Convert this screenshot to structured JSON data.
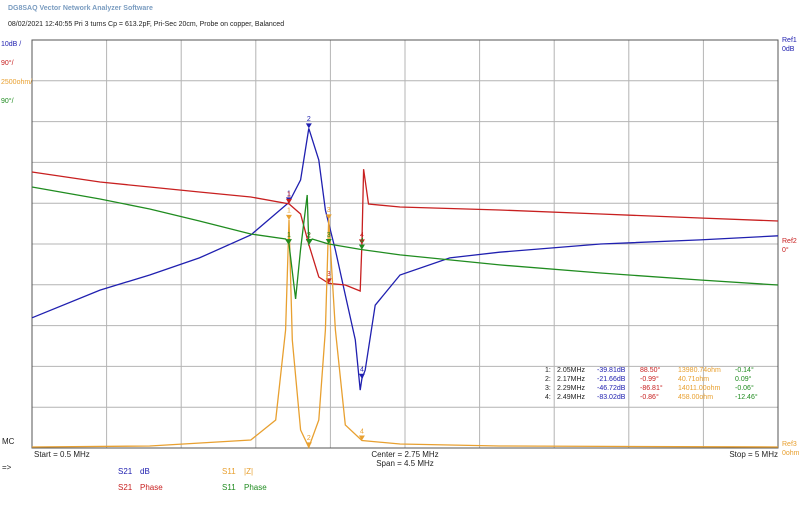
{
  "app_title": "DG8SAQ Vector Network Analyzer Software",
  "header": "08/02/2021   12:40:55   Pri 3 turns Cp = 613.2pF, Pri-Sec 20cm, Probe on copper, Balanced",
  "left_label": "MC",
  "arrow_label": "=>",
  "chart_data": {
    "type": "line",
    "xlim": [
      0.5,
      5
    ],
    "xticks": [
      0.5,
      0.95,
      1.4,
      1.85,
      2.3,
      2.75,
      3.2,
      3.65,
      4.1,
      4.55,
      5
    ],
    "ylim": [
      -100,
      0
    ],
    "yticks": [
      -100,
      -90,
      -80,
      -70,
      -60,
      -50,
      -40,
      -30,
      -20,
      -10,
      0
    ],
    "grid": true,
    "scale_labels": [
      "10dB /",
      "90°/",
      "2500ohm/",
      "90°/"
    ],
    "ref_labels": [
      [
        "Ref1",
        "0dB"
      ],
      [
        "Ref2",
        "0°"
      ],
      [
        "Ref3",
        "0ohm"
      ]
    ],
    "start_label": "Start = 0.5 MHz",
    "center_label": "Center = 2.75 MHz",
    "span_label": "Span = 4.5 MHz",
    "stop_label": "Stop = 5 MHz",
    "series": [
      {
        "name": "S21",
        "quantity": "dB",
        "color": "#2020b0",
        "ylim": [
          -100,
          0
        ],
        "x": [
          0.5,
          0.91,
          1.21,
          1.51,
          1.82,
          2.05,
          2.12,
          2.17,
          2.23,
          2.27,
          2.33,
          2.39,
          2.45,
          2.48,
          2.49,
          2.51,
          2.57,
          2.72,
          3.02,
          3.32,
          3.93,
          4.53,
          5
        ],
        "values": [
          -68.1,
          -61.3,
          -57.6,
          -53.4,
          -47.8,
          -39.81,
          -34.3,
          -21.66,
          -29.4,
          -41.7,
          -51.5,
          -62.5,
          -73.5,
          -85.8,
          -83.02,
          -80.9,
          -65,
          -57.6,
          -53.4,
          -52,
          -50,
          -49,
          -48
        ]
      },
      {
        "name": "S21",
        "quantity": "Phase",
        "color": "#c82020",
        "ylim": [
          -450,
          450
        ],
        "x": [
          0.5,
          0.91,
          1.21,
          1.51,
          1.82,
          2.05,
          2.12,
          2.17,
          2.23,
          2.29,
          2.39,
          2.48,
          2.49,
          2.5,
          2.53,
          2.72,
          3.32,
          3.93,
          4.53,
          5
        ],
        "values": [
          158.8,
          136.8,
          125.7,
          114.7,
          103.7,
          88.5,
          66.2,
          -0.99,
          -72.8,
          -86.81,
          -90.4,
          -103.7,
          -0.86,
          165,
          88.2,
          81.6,
          75,
          66.2,
          57.4,
          50.7
        ]
      },
      {
        "name": "S11",
        "quantity": "|Z|",
        "color": "#e8a030",
        "ylim": [
          0,
          25000
        ],
        "x": [
          0.5,
          1.21,
          1.82,
          1.97,
          2.03,
          2.05,
          2.07,
          2.12,
          2.17,
          2.23,
          2.27,
          2.29,
          2.33,
          2.39,
          2.49,
          2.72,
          3.32,
          5
        ],
        "values": [
          60,
          120,
          490,
          1716,
          7230,
          13980.74,
          6618,
          1103,
          40.71,
          1716,
          7230,
          14011,
          7230,
          1409,
          458,
          245,
          120,
          60
        ]
      },
      {
        "name": "S11",
        "quantity": "Phase",
        "color": "#208c20",
        "ylim": [
          -450,
          450
        ],
        "x": [
          0.5,
          0.91,
          1.21,
          1.51,
          1.82,
          2.03,
          2.05,
          2.09,
          2.12,
          2.16,
          2.17,
          2.19,
          2.29,
          2.49,
          2.72,
          3.32,
          3.93,
          4.53,
          5
        ],
        "values": [
          125.7,
          99.3,
          77.2,
          50.7,
          22.1,
          11,
          -0.14,
          -121,
          -11,
          108,
          0.09,
          11,
          -0.06,
          -12.46,
          -24,
          -46,
          -64,
          -79.4,
          -90.4
        ]
      }
    ],
    "markers": {
      "ids": [
        "1",
        "2",
        "3",
        "4"
      ],
      "x": [
        2.05,
        2.17,
        2.29,
        2.49
      ]
    },
    "marker_table": [
      [
        "1:",
        "2.05MHz",
        "-39.81dB",
        "88.50°",
        "13980.74ohm",
        "-0.14°"
      ],
      [
        "2:",
        "2.17MHz",
        "-21.66dB",
        "-0.99°",
        "40.71ohm",
        "0.09°"
      ],
      [
        "3:",
        "2.29MHz",
        "-46.72dB",
        "-86.81°",
        "14011.00ohm",
        "-0.06°"
      ],
      [
        "4:",
        "2.49MHz",
        "-83.02dB",
        "-0.86°",
        "458.00ohm",
        "-12.46°"
      ]
    ]
  }
}
